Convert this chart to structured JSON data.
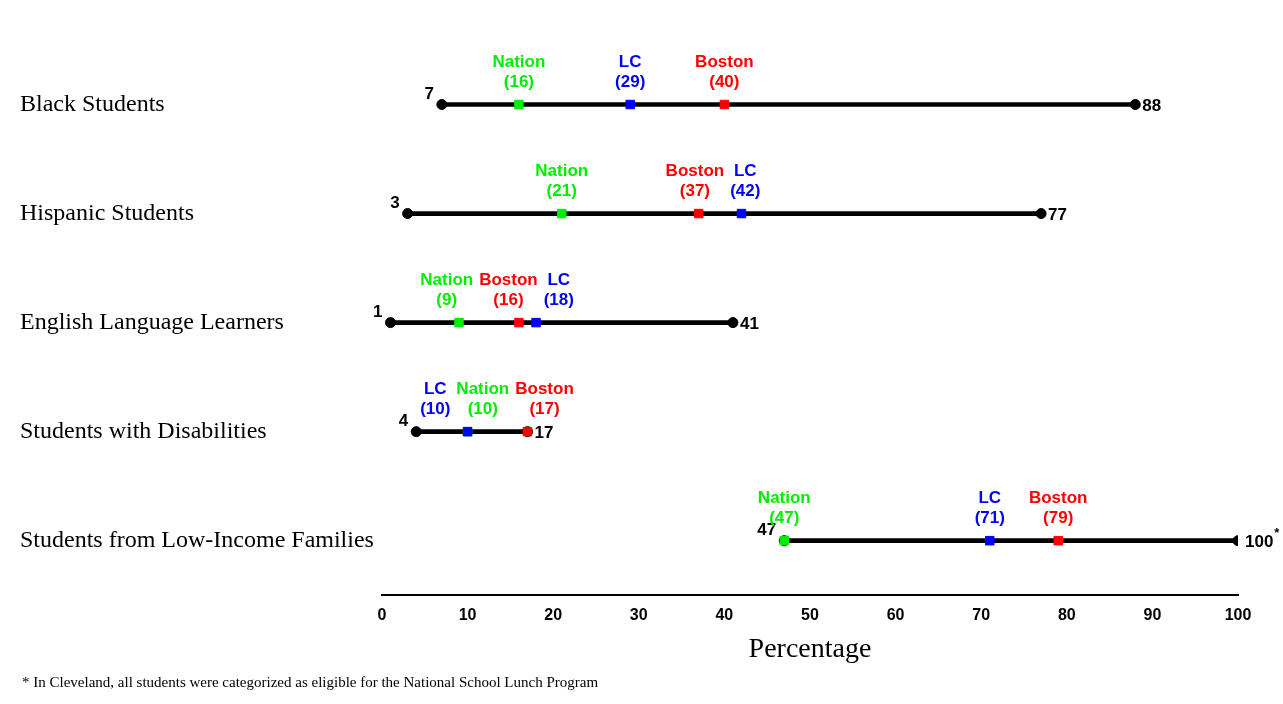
{
  "chart_data": {
    "type": "bar",
    "orientation": "horizontal",
    "xlabel": "Percentage",
    "categories": [
      "Black Students",
      "Hispanic Students",
      "English Language Learners",
      "Students with Disabilities",
      "Students from Low-Income Families"
    ],
    "series": [
      {
        "color": "#000000",
        "base": [
          7,
          3,
          1,
          4,
          47
        ],
        "values": [
          81,
          74,
          40,
          13,
          53
        ]
      },
      {
        "type": "scatter",
        "color": "#000000",
        "marker": "circle",
        "values": [
          7,
          3,
          1,
          4,
          47
        ],
        "data_labels": true
      },
      {
        "type": "scatter",
        "color": "#000000",
        "marker": "circle",
        "values": [
          88,
          77,
          41,
          17,
          100
        ],
        "value_labels": [
          "88",
          "77",
          "41",
          "17",
          "100$^{*}$"
        ]
      },
      {
        "type": "scatter",
        "name": "Nation",
        "color": "#00ee00",
        "marker": "square",
        "values": [
          16,
          21,
          9,
          10,
          47
        ],
        "value_labels": [
          "(16)",
          "(21)",
          "(9)",
          "(10)",
          "(47)"
        ]
      },
      {
        "type": "scatter",
        "name": "LC",
        "color": "#0000ff",
        "marker": "square",
        "values": [
          29,
          42,
          18,
          10,
          71
        ],
        "value_labels": [
          "(29)",
          "(42)",
          "(18)",
          "(10)",
          "(71)"
        ]
      },
      {
        "type": "scatter",
        "name": "Boston",
        "color": "#ff0000",
        "marker": "square",
        "values": [
          40,
          37,
          16,
          17,
          79
        ],
        "value_labels": [
          "(40)",
          "(37)",
          "(16)",
          "(17)",
          "(79)"
        ]
      }
    ],
    "xlim": [
      0,
      100
    ],
    "xticks": [
      0,
      10,
      20,
      30,
      40,
      50,
      60,
      70,
      80,
      90,
      100
    ],
    "grid": false,
    "legend": false,
    "annotations": [
      "* In Cleveland, all students were categorized as eligible for the National School Lunch Program"
    ]
  }
}
